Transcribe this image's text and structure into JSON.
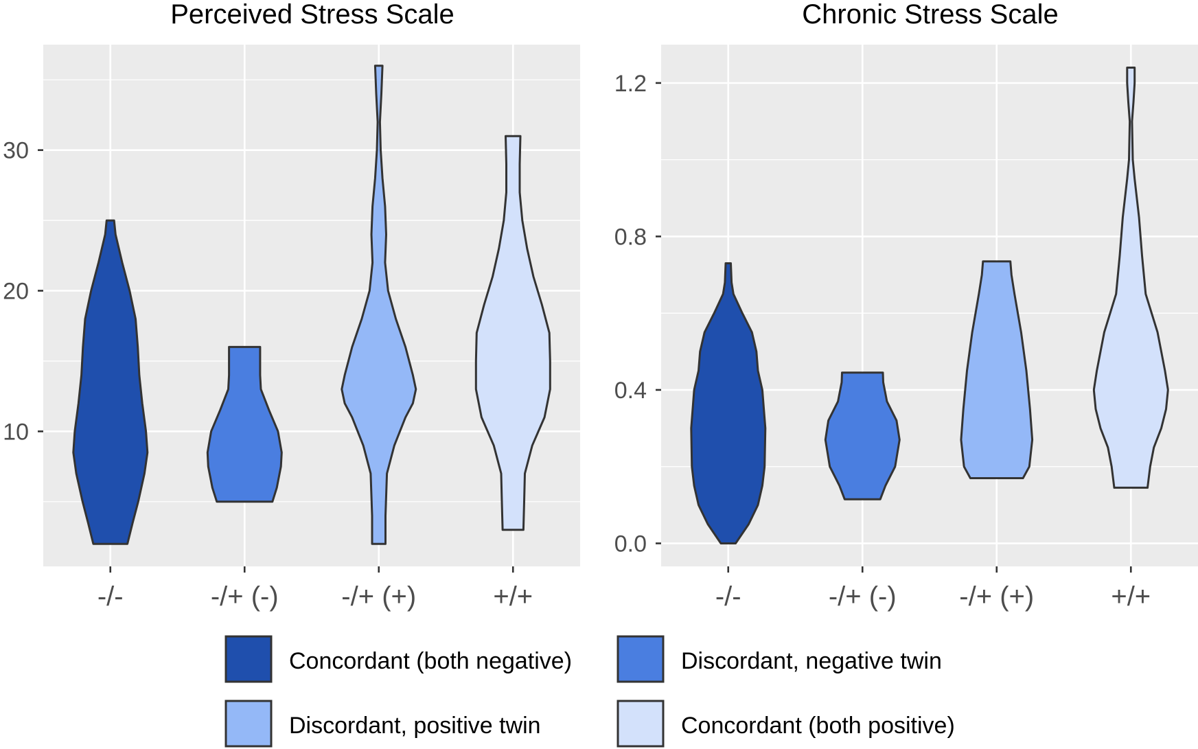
{
  "chart_data": [
    {
      "type": "violin",
      "title": "Perceived Stress Scale",
      "xlabel": "",
      "ylabel": "",
      "categories": [
        "-/-",
        "-/+ (-)",
        "-/+ (+)",
        "+/+"
      ],
      "yticks": [
        10,
        20,
        30
      ],
      "ytick_labels": [
        "10",
        "20",
        "30"
      ],
      "ylim": [
        0.4,
        37.5
      ],
      "series": [
        {
          "name": "Concordant (both negative)",
          "min": 2,
          "max": 25,
          "profile": [
            [
              2,
              0.46
            ],
            [
              3.5,
              0.6
            ],
            [
              5,
              0.75
            ],
            [
              7,
              0.92
            ],
            [
              8.5,
              1.0
            ],
            [
              10,
              0.96
            ],
            [
              12,
              0.86
            ],
            [
              14,
              0.78
            ],
            [
              16,
              0.74
            ],
            [
              18,
              0.68
            ],
            [
              20,
              0.52
            ],
            [
              22,
              0.32
            ],
            [
              24,
              0.14
            ],
            [
              25,
              0.1
            ]
          ]
        },
        {
          "name": "Discordant, negative twin",
          "min": 5,
          "max": 16,
          "profile": [
            [
              5,
              0.75
            ],
            [
              6,
              0.87
            ],
            [
              7.5,
              0.98
            ],
            [
              8.5,
              1.0
            ],
            [
              10,
              0.9
            ],
            [
              11.5,
              0.66
            ],
            [
              13,
              0.44
            ],
            [
              14,
              0.42
            ],
            [
              15,
              0.42
            ],
            [
              16,
              0.42
            ]
          ]
        },
        {
          "name": "Discordant, positive twin",
          "min": 2,
          "max": 36,
          "profile": [
            [
              2,
              0.18
            ],
            [
              4,
              0.18
            ],
            [
              7,
              0.22
            ],
            [
              9,
              0.42
            ],
            [
              11,
              0.72
            ],
            [
              12,
              0.92
            ],
            [
              13,
              1.0
            ],
            [
              14,
              0.92
            ],
            [
              16,
              0.72
            ],
            [
              18,
              0.46
            ],
            [
              20,
              0.25
            ],
            [
              22,
              0.17
            ],
            [
              24,
              0.2
            ],
            [
              26,
              0.17
            ],
            [
              28,
              0.1
            ],
            [
              30,
              0.05
            ],
            [
              32,
              0.03
            ],
            [
              34,
              0.07
            ],
            [
              36,
              0.1
            ]
          ]
        },
        {
          "name": "Concordant (both positive)",
          "min": 3,
          "max": 31,
          "profile": [
            [
              3,
              0.28
            ],
            [
              5,
              0.3
            ],
            [
              7,
              0.32
            ],
            [
              9,
              0.52
            ],
            [
              11,
              0.85
            ],
            [
              13,
              1.0
            ],
            [
              15,
              1.0
            ],
            [
              17,
              0.98
            ],
            [
              19,
              0.78
            ],
            [
              21,
              0.55
            ],
            [
              23,
              0.38
            ],
            [
              25,
              0.25
            ],
            [
              27,
              0.18
            ],
            [
              29,
              0.18
            ],
            [
              31,
              0.2
            ]
          ]
        }
      ]
    },
    {
      "type": "violin",
      "title": "Chronic Stress Scale",
      "xlabel": "",
      "ylabel": "",
      "categories": [
        "-/-",
        "-/+ (-)",
        "-/+ (+)",
        "+/+"
      ],
      "yticks": [
        0.0,
        0.4,
        0.8,
        1.2
      ],
      "ytick_labels": [
        "0.0",
        "0.4",
        "0.8",
        "1.2"
      ],
      "ylim": [
        -0.06,
        1.3
      ],
      "series": [
        {
          "name": "Concordant (both negative)",
          "min": 0.0,
          "max": 0.73,
          "profile": [
            [
              0.0,
              0.2
            ],
            [
              0.05,
              0.55
            ],
            [
              0.1,
              0.8
            ],
            [
              0.15,
              0.92
            ],
            [
              0.2,
              0.98
            ],
            [
              0.3,
              1.0
            ],
            [
              0.4,
              0.92
            ],
            [
              0.45,
              0.8
            ],
            [
              0.5,
              0.76
            ],
            [
              0.55,
              0.64
            ],
            [
              0.6,
              0.38
            ],
            [
              0.65,
              0.14
            ],
            [
              0.68,
              0.09
            ],
            [
              0.73,
              0.07
            ]
          ]
        },
        {
          "name": "Discordant, negative twin",
          "min": 0.115,
          "max": 0.445,
          "profile": [
            [
              0.115,
              0.48
            ],
            [
              0.15,
              0.62
            ],
            [
              0.2,
              0.88
            ],
            [
              0.27,
              1.0
            ],
            [
              0.32,
              0.92
            ],
            [
              0.37,
              0.66
            ],
            [
              0.42,
              0.56
            ],
            [
              0.445,
              0.55
            ]
          ]
        },
        {
          "name": "Discordant, positive twin",
          "min": 0.17,
          "max": 0.735,
          "profile": [
            [
              0.17,
              0.71
            ],
            [
              0.2,
              0.88
            ],
            [
              0.27,
              0.96
            ],
            [
              0.35,
              0.9
            ],
            [
              0.45,
              0.8
            ],
            [
              0.55,
              0.66
            ],
            [
              0.65,
              0.48
            ],
            [
              0.7,
              0.4
            ],
            [
              0.735,
              0.37
            ]
          ]
        },
        {
          "name": "Concordant (both positive)",
          "min": 0.145,
          "max": 1.24,
          "profile": [
            [
              0.145,
              0.45
            ],
            [
              0.2,
              0.52
            ],
            [
              0.25,
              0.62
            ],
            [
              0.3,
              0.82
            ],
            [
              0.35,
              0.95
            ],
            [
              0.4,
              1.0
            ],
            [
              0.45,
              0.92
            ],
            [
              0.55,
              0.72
            ],
            [
              0.65,
              0.4
            ],
            [
              0.75,
              0.3
            ],
            [
              0.85,
              0.22
            ],
            [
              0.95,
              0.1
            ],
            [
              1.0,
              0.05
            ],
            [
              1.1,
              0.03
            ],
            [
              1.15,
              0.07
            ],
            [
              1.2,
              0.1
            ],
            [
              1.24,
              0.1
            ]
          ]
        }
      ]
    }
  ],
  "legend": {
    "position": "bottom",
    "items": [
      {
        "label": "Concordant (both negative)",
        "color": "#1f4fad"
      },
      {
        "label": "Discordant, negative twin",
        "color": "#4a7ee0"
      },
      {
        "label": "Discordant, positive twin",
        "color": "#94b8f7"
      },
      {
        "label": "Concordant (both positive)",
        "color": "#d3e1fb"
      }
    ]
  },
  "style": {
    "panel_background": "#ebebeb",
    "grid_color": "#ffffff",
    "outline_color": "#333333"
  }
}
